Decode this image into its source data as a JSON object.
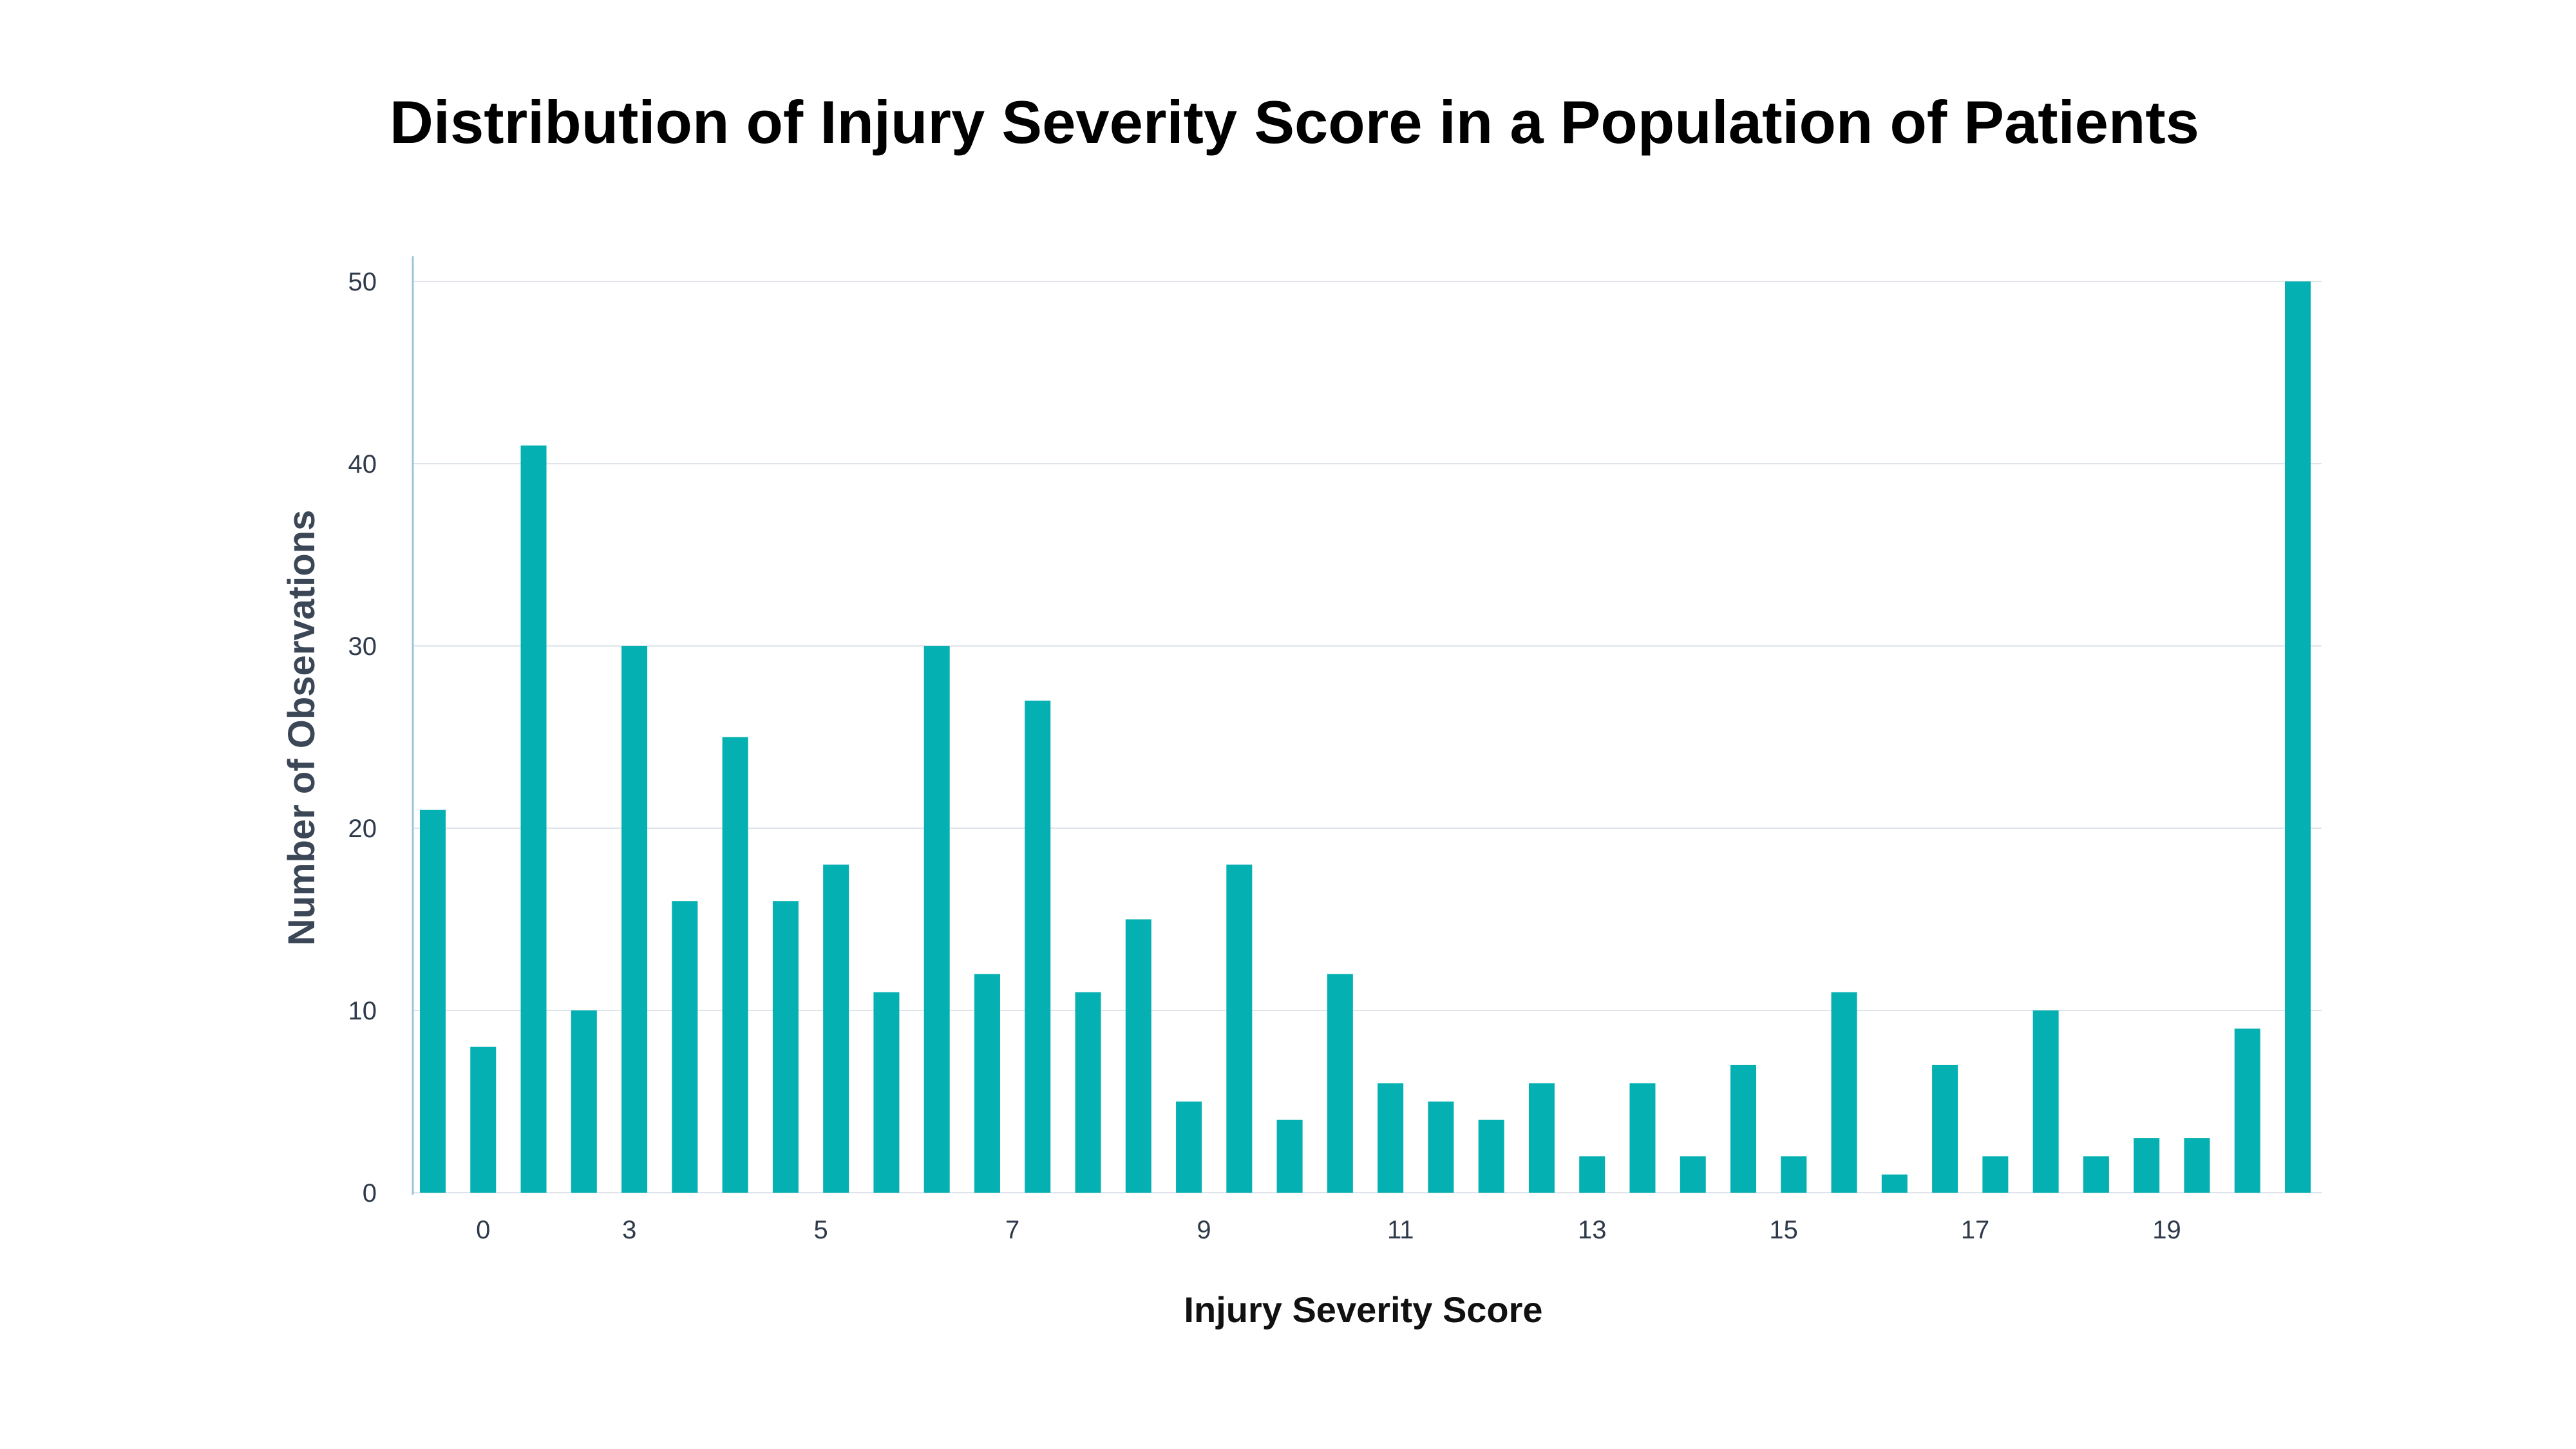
{
  "chart_data": {
    "type": "bar",
    "title": "Distribution of Injury Severity Score in a Population of Patients",
    "xlabel": "Injury Severity Score",
    "ylabel": "Number of Observations",
    "ylim": [
      0,
      50
    ],
    "yticks": [
      0,
      10,
      20,
      30,
      40,
      50
    ],
    "grid": true,
    "legend": "none",
    "bar_color": "#05b0b3",
    "values": [
      21,
      8,
      41,
      10,
      30,
      16,
      25,
      16,
      18,
      11,
      30,
      12,
      27,
      11,
      15,
      5,
      18,
      4,
      12,
      6,
      5,
      4,
      6,
      2,
      6,
      2,
      7,
      2,
      11,
      1,
      7,
      2,
      10,
      2,
      3,
      3,
      9,
      50
    ],
    "x_tick_labels": [
      {
        "label": "0",
        "bar_index": 1
      },
      {
        "label": "3",
        "bar_index": 3.9
      },
      {
        "label": "5",
        "bar_index": 7.7
      },
      {
        "label": "7",
        "bar_index": 11.5
      },
      {
        "label": "9",
        "bar_index": 15.3
      },
      {
        "label": "11",
        "bar_index": 19.2
      },
      {
        "label": "13",
        "bar_index": 23
      },
      {
        "label": "15",
        "bar_index": 26.8
      },
      {
        "label": "17",
        "bar_index": 30.6
      },
      {
        "label": "19",
        "bar_index": 34.4
      }
    ]
  }
}
